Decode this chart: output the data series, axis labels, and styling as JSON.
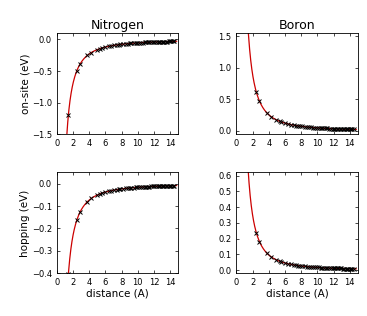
{
  "title_left": "Nitrogen",
  "title_right": "Boron",
  "ylabel_top": "on-site (eV)",
  "ylabel_bottom": "hopping (eV)",
  "xlabel": "distance (A)",
  "N_onsite_ylim": [
    -1.5,
    0.1
  ],
  "N_onsite_yticks": [
    0.0,
    -0.5,
    -1.0,
    -1.5
  ],
  "N_hopping_ylim": [
    -0.4,
    0.05
  ],
  "N_hopping_yticks": [
    0,
    -0.1,
    -0.2,
    -0.3,
    -0.4
  ],
  "B_onsite_ylim": [
    -0.05,
    1.55
  ],
  "B_onsite_yticks": [
    0.0,
    0.5,
    1.0,
    1.5
  ],
  "B_hopping_ylim": [
    -0.02,
    0.62
  ],
  "B_hopping_yticks": [
    0.0,
    0.1,
    0.2,
    0.3,
    0.4,
    0.5,
    0.6
  ],
  "xlim": [
    0,
    15
  ],
  "xticks": [
    0,
    2,
    4,
    6,
    8,
    10,
    12,
    14
  ],
  "curve_color": "#cc0000",
  "marker_color": "black",
  "marker": "x",
  "background": "white",
  "tick_labelsize": 6,
  "label_fontsize": 7.5,
  "title_fontsize": 9,
  "graphene_distances": [
    1.42,
    2.46,
    2.84,
    3.76,
    4.26,
    4.92,
    5.34,
    5.56,
    6.0,
    6.39,
    6.72,
    7.1,
    7.38,
    7.66,
    7.81,
    8.12,
    8.52,
    8.73,
    9.0,
    9.22,
    9.5,
    9.72,
    9.96,
    10.18,
    10.4,
    10.62,
    10.84,
    11.06,
    11.22,
    11.44,
    11.66,
    11.88,
    12.05,
    12.22,
    12.44,
    12.6,
    12.78,
    12.95,
    13.12,
    13.3,
    13.48,
    13.66,
    13.8,
    14.0,
    14.15,
    14.3,
    14.48
  ]
}
